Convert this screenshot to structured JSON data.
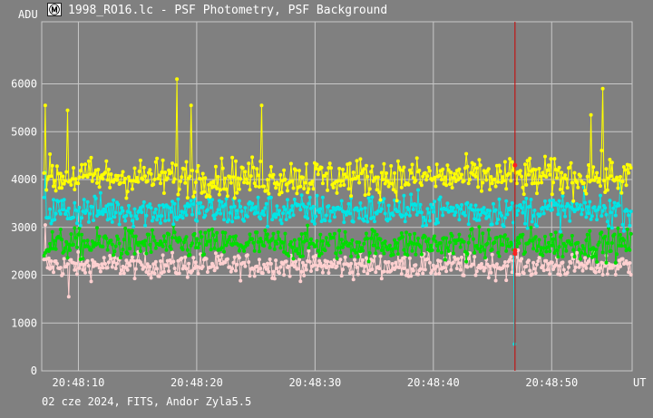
{
  "title": "1998_RO16.lc - PSF Photometry, PSF Background",
  "footer": "02 cze 2024, FITS, Andor Zyla5.5",
  "colors": {
    "background": "#808080",
    "grid": "#c8c8c8",
    "axis": "#ffffff",
    "text": "#ffffff",
    "marker_line": "#cc0000"
  },
  "chart_data": {
    "type": "scatter",
    "ylabel": "ADU",
    "xlabel": "UT",
    "y_ticks": [
      0,
      1000,
      2000,
      3000,
      4000,
      5000,
      6000
    ],
    "y_range": [
      0,
      7300
    ],
    "x_ticks": [
      "20:48:10",
      "20:48:20",
      "20:48:30",
      "20:48:40",
      "20:48:50"
    ],
    "x_range_seconds": [
      6.9,
      56.8
    ],
    "x_start_label": "20:48:00",
    "vertical_marker_seconds": 46.9,
    "grid": true,
    "series": [
      {
        "color": "#ffff00",
        "mean": 4050,
        "spread": 380,
        "dip": 4300,
        "peaks": [
          [
            18.3,
            6100
          ],
          [
            54.3,
            5900
          ],
          [
            25.5,
            5550
          ],
          [
            19.5,
            5550
          ],
          [
            7.2,
            5550
          ],
          [
            9.1,
            5450
          ],
          [
            53.3,
            5350
          ]
        ]
      },
      {
        "color": "#00e5e5",
        "mean": 3350,
        "spread": 320,
        "dip": 560,
        "peaks": [
          [
            7.2,
            4150
          ],
          [
            55.8,
            3950
          ]
        ]
      },
      {
        "color": "#00dd00",
        "mean": 2650,
        "spread": 300,
        "dip": 2450,
        "peaks": []
      },
      {
        "color": "#ffd0d0",
        "mean": 2200,
        "spread": 240,
        "dip": 2520,
        "peaks": [
          [
            7.2,
            3050
          ],
          [
            9.2,
            1550
          ]
        ]
      }
    ],
    "point_count": 500,
    "dip_seconds": 46.9
  }
}
